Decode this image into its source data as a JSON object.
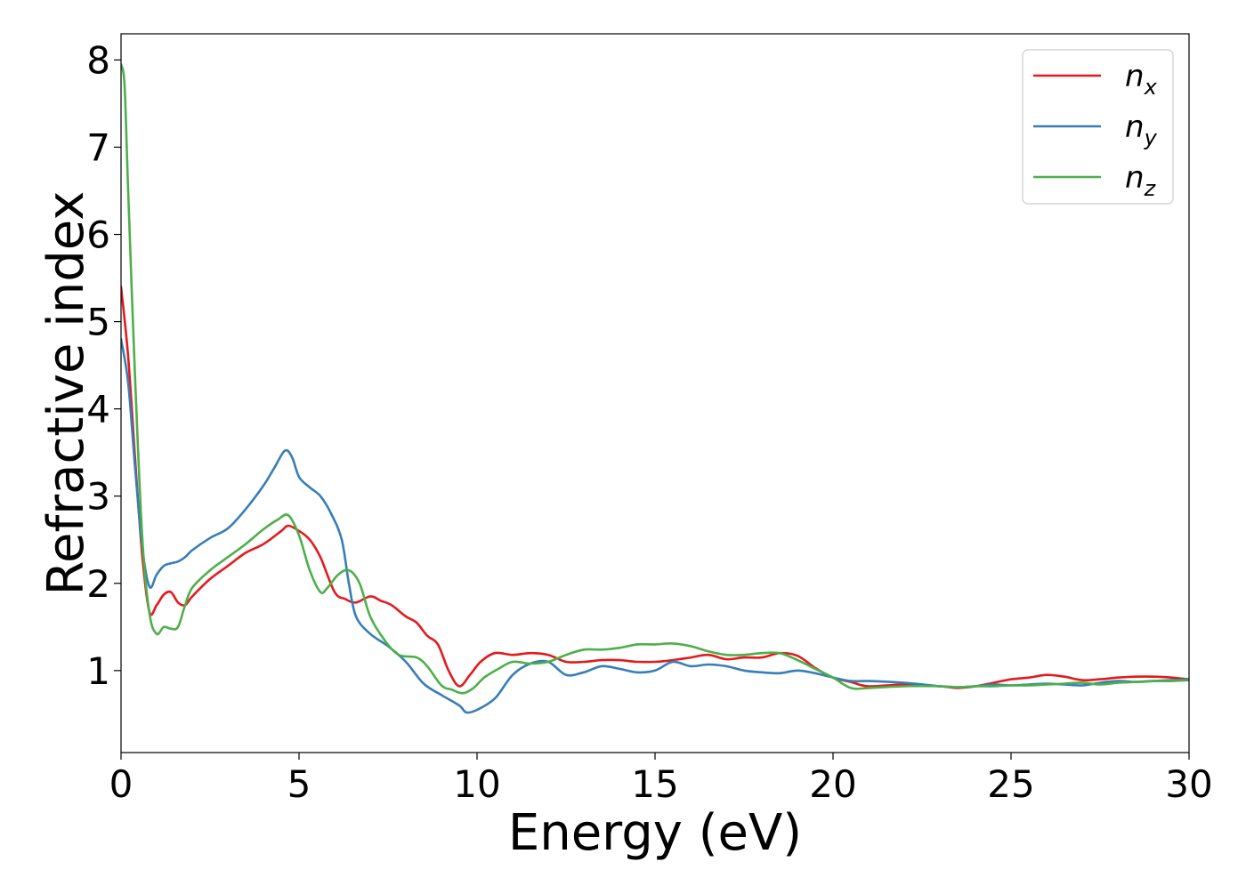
{
  "chart_data": {
    "type": "line",
    "title": "",
    "xlabel": "Energy (eV)",
    "ylabel": "Refractive index",
    "xlim": [
      0,
      30
    ],
    "ylim": [
      0.06,
      8.3
    ],
    "xticks": [
      0,
      5,
      10,
      15,
      20,
      25,
      30
    ],
    "xtick_labels": [
      "0",
      "5",
      "10",
      "15",
      "20",
      "25",
      "30"
    ],
    "yticks": [
      1,
      2,
      3,
      4,
      5,
      6,
      7,
      8
    ],
    "ytick_labels": [
      "1",
      "2",
      "3",
      "4",
      "5",
      "6",
      "7",
      "8"
    ],
    "grid": false,
    "legend_position": "top-right",
    "series": [
      {
        "name": "n_x",
        "label_main": "n",
        "label_sub": "x",
        "color": "#e41a1c",
        "x": [
          0,
          0.2,
          0.4,
          0.6,
          0.8,
          1.0,
          1.2,
          1.4,
          1.6,
          1.8,
          2.0,
          2.5,
          3.0,
          3.5,
          4.0,
          4.5,
          4.7,
          5.0,
          5.3,
          5.6,
          6.0,
          6.3,
          6.6,
          7.0,
          7.3,
          7.6,
          8.0,
          8.3,
          8.6,
          8.9,
          9.2,
          9.5,
          9.8,
          10.1,
          10.5,
          11.0,
          11.5,
          12.0,
          12.5,
          13.0,
          13.5,
          14.0,
          14.5,
          15.0,
          15.5,
          16.0,
          16.5,
          17.0,
          17.5,
          18.0,
          18.5,
          19.0,
          19.5,
          20.0,
          20.5,
          21.0,
          22.0,
          23.0,
          23.5,
          24.0,
          24.5,
          25.0,
          25.5,
          26.0,
          26.5,
          27.0,
          27.5,
          28.0,
          28.5,
          29.0,
          29.5,
          30.0
        ],
        "y": [
          5.4,
          4.6,
          3.4,
          2.3,
          1.67,
          1.75,
          1.87,
          1.9,
          1.78,
          1.75,
          1.85,
          2.05,
          2.2,
          2.35,
          2.45,
          2.6,
          2.66,
          2.6,
          2.5,
          2.3,
          1.9,
          1.82,
          1.78,
          1.85,
          1.8,
          1.75,
          1.62,
          1.55,
          1.4,
          1.3,
          1.0,
          0.82,
          0.95,
          1.1,
          1.2,
          1.18,
          1.2,
          1.18,
          1.1,
          1.1,
          1.12,
          1.12,
          1.1,
          1.1,
          1.12,
          1.15,
          1.18,
          1.13,
          1.15,
          1.15,
          1.2,
          1.17,
          1.03,
          0.92,
          0.87,
          0.82,
          0.84,
          0.82,
          0.8,
          0.82,
          0.86,
          0.9,
          0.92,
          0.95,
          0.93,
          0.89,
          0.9,
          0.92,
          0.93,
          0.93,
          0.92,
          0.9
        ]
      },
      {
        "name": "n_y",
        "label_main": "n",
        "label_sub": "y",
        "color": "#377eb8",
        "x": [
          0,
          0.2,
          0.4,
          0.6,
          0.8,
          1.0,
          1.2,
          1.4,
          1.6,
          1.8,
          2.0,
          2.5,
          3.0,
          3.5,
          4.0,
          4.3,
          4.6,
          4.8,
          5.0,
          5.3,
          5.6,
          5.9,
          6.2,
          6.4,
          6.6,
          7.0,
          7.5,
          8.0,
          8.5,
          9.0,
          9.5,
          9.7,
          10.0,
          10.5,
          11.0,
          11.5,
          12.0,
          12.5,
          13.0,
          13.5,
          14.0,
          14.5,
          15.0,
          15.5,
          16.0,
          16.5,
          17.0,
          17.5,
          18.0,
          18.5,
          19.0,
          19.5,
          20.0,
          20.5,
          21.0,
          22.0,
          23.0,
          23.5,
          24.0,
          24.5,
          25.0,
          25.5,
          26.0,
          26.5,
          27.0,
          27.5,
          28.0,
          28.5,
          29.0,
          29.5,
          30.0
        ],
        "y": [
          4.8,
          4.3,
          3.3,
          2.4,
          1.96,
          2.1,
          2.2,
          2.23,
          2.25,
          2.3,
          2.38,
          2.52,
          2.63,
          2.85,
          3.12,
          3.32,
          3.52,
          3.45,
          3.22,
          3.1,
          3.0,
          2.8,
          2.5,
          2.0,
          1.62,
          1.42,
          1.28,
          1.1,
          0.85,
          0.72,
          0.6,
          0.52,
          0.55,
          0.68,
          0.95,
          1.08,
          1.1,
          0.95,
          0.98,
          1.05,
          1.02,
          0.98,
          1.0,
          1.1,
          1.05,
          1.07,
          1.05,
          1.0,
          0.98,
          0.97,
          1.0,
          0.97,
          0.92,
          0.88,
          0.88,
          0.86,
          0.82,
          0.81,
          0.82,
          0.84,
          0.83,
          0.84,
          0.85,
          0.84,
          0.83,
          0.86,
          0.88,
          0.87,
          0.88,
          0.89,
          0.9
        ]
      },
      {
        "name": "n_z",
        "label_main": "n",
        "label_sub": "z",
        "color": "#4daf4a",
        "x": [
          0,
          0.1,
          0.2,
          0.4,
          0.6,
          0.8,
          1.0,
          1.2,
          1.4,
          1.6,
          1.8,
          2.0,
          2.5,
          3.0,
          3.5,
          4.0,
          4.4,
          4.7,
          5.0,
          5.3,
          5.6,
          5.8,
          6.1,
          6.4,
          6.7,
          7.0,
          7.4,
          7.8,
          8.3,
          8.6,
          9.0,
          9.3,
          9.6,
          9.9,
          10.2,
          10.6,
          11.0,
          11.5,
          12.0,
          12.5,
          13.0,
          13.5,
          14.0,
          14.5,
          15.0,
          15.5,
          16.0,
          16.5,
          17.0,
          17.5,
          18.0,
          18.5,
          19.0,
          19.5,
          20.0,
          20.5,
          21.0,
          22.0,
          23.0,
          23.5,
          24.0,
          24.5,
          25.0,
          25.5,
          26.0,
          26.5,
          27.0,
          27.5,
          28.0,
          28.5,
          29.0,
          29.5,
          30.0
        ],
        "y": [
          7.95,
          7.7,
          6.5,
          4.3,
          2.5,
          1.65,
          1.42,
          1.5,
          1.48,
          1.5,
          1.75,
          1.95,
          2.15,
          2.3,
          2.45,
          2.62,
          2.73,
          2.78,
          2.55,
          2.15,
          1.9,
          1.95,
          2.1,
          2.15,
          2.0,
          1.62,
          1.35,
          1.18,
          1.15,
          1.05,
          0.83,
          0.78,
          0.74,
          0.8,
          0.92,
          1.02,
          1.1,
          1.08,
          1.1,
          1.18,
          1.24,
          1.24,
          1.26,
          1.3,
          1.3,
          1.31,
          1.28,
          1.22,
          1.18,
          1.18,
          1.2,
          1.2,
          1.12,
          1.02,
          0.92,
          0.8,
          0.8,
          0.82,
          0.82,
          0.81,
          0.82,
          0.82,
          0.83,
          0.83,
          0.84,
          0.85,
          0.86,
          0.84,
          0.86,
          0.87,
          0.88,
          0.88,
          0.89
        ]
      }
    ]
  }
}
